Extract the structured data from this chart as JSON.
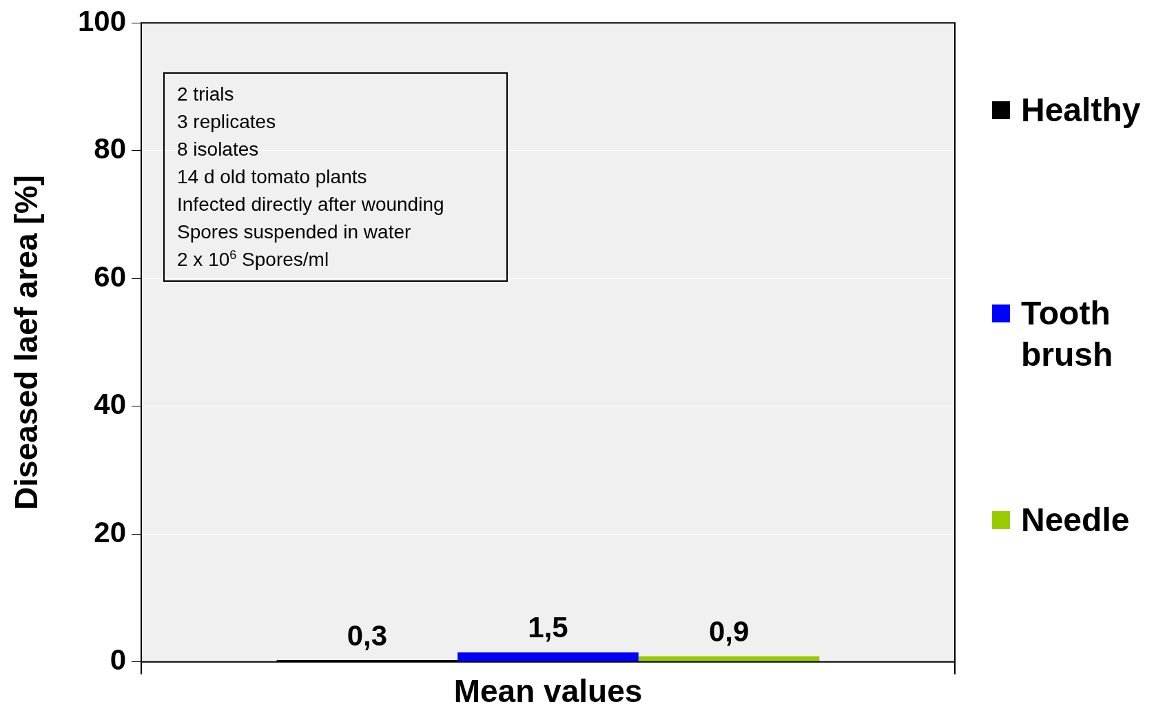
{
  "chart_data": {
    "type": "bar",
    "xlabel": "Mean values",
    "ylabel": "Diseased laef area [%]",
    "categories": [
      null
    ],
    "series": [
      {
        "name": "Healthy",
        "color": "#000000",
        "values": [
          0.3
        ],
        "value_labels": [
          "0,3"
        ]
      },
      {
        "name": "Tooth brush",
        "color": "#0000ff",
        "values": [
          1.5
        ],
        "value_labels": [
          "1,5"
        ]
      },
      {
        "name": "Needle",
        "color": "#99cc00",
        "values": [
          0.9
        ],
        "value_labels": [
          "0,9"
        ]
      }
    ],
    "ylim": [
      0,
      100
    ],
    "yticks": [
      0,
      20,
      40,
      60,
      80,
      100
    ],
    "grid": "y",
    "legend": "right",
    "annotations": [
      "2 trials",
      "3 replicates",
      "8 isolates",
      "14 d old tomato plants",
      "Infected directly after wounding",
      "Spores suspended in water",
      "2 x 10$^{6}$ Spores/ml"
    ]
  }
}
